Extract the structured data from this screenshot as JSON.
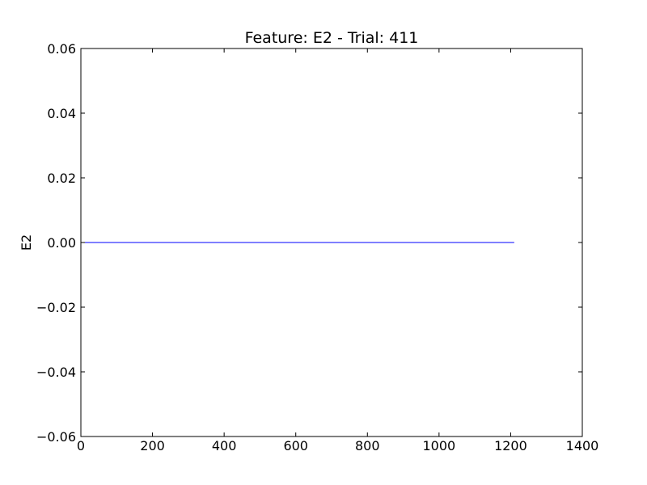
{
  "chart_data": {
    "type": "line",
    "title": "Feature: E2 - Trial: 411",
    "xlabel": "",
    "ylabel": "E2",
    "xlim": [
      0,
      1400
    ],
    "ylim": [
      -0.06,
      0.06
    ],
    "x_ticks": [
      0,
      200,
      400,
      600,
      800,
      1000,
      1200,
      1400
    ],
    "x_tick_labels": [
      "0",
      "200",
      "400",
      "600",
      "800",
      "1000",
      "1200",
      "1400"
    ],
    "y_ticks": [
      0.06,
      0.04,
      0.02,
      0.0,
      -0.02,
      -0.04,
      -0.06
    ],
    "y_tick_labels": [
      "0.06",
      "0.04",
      "0.02",
      "0.00",
      "−0.02",
      "−0.04",
      "−0.06"
    ],
    "grid": false,
    "series": [
      {
        "color": "#0000ff",
        "x": [
          0,
          1210
        ],
        "y": [
          0.0,
          0.0
        ]
      }
    ]
  }
}
